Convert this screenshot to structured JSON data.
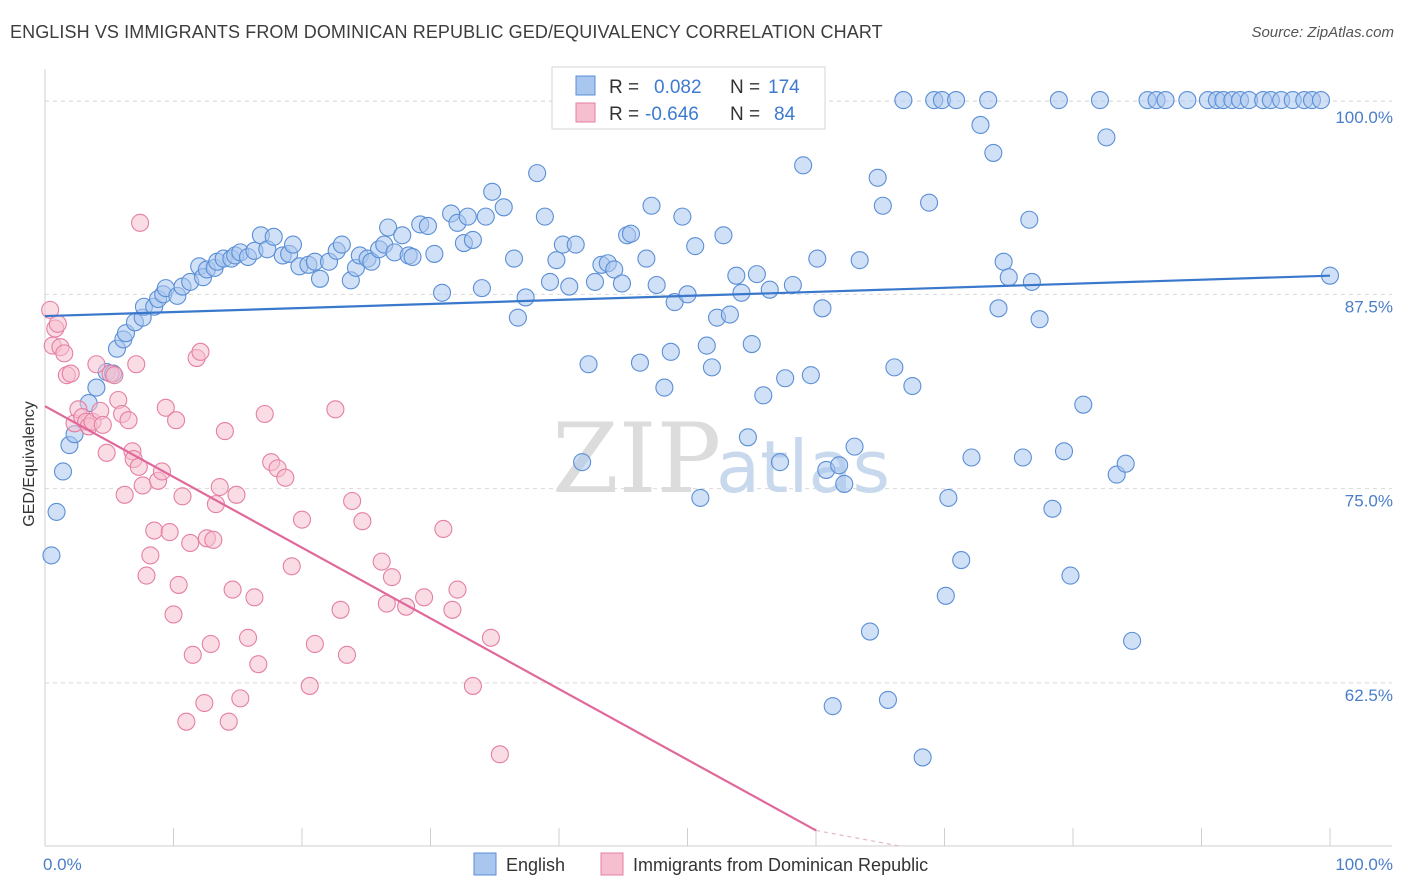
{
  "title": "ENGLISH VS IMMIGRANTS FROM DOMINICAN REPUBLIC GED/EQUIVALENCY CORRELATION CHART",
  "source": "Source: ZipAtlas.com",
  "watermark": {
    "zip": "ZIP",
    "atlas": "atlas"
  },
  "colors": {
    "english_fill": "#a9c6ef",
    "english_stroke": "#5b8fd6",
    "english_line": "#3a78cc",
    "dominican_fill": "#f5bfd0",
    "dominican_stroke": "#e57fa3",
    "dominican_line": "#e0689a",
    "grid": "#d9d9d9",
    "tick_label": "#4a7ec9"
  },
  "legend": {
    "rows": [
      {
        "r_label": "R =",
        "r_value": "0.082",
        "n_label": "N =",
        "n_value": "174"
      },
      {
        "r_label": "R =",
        "r_value": "-0.646",
        "n_label": "N =",
        "n_value": "84"
      }
    ]
  },
  "bottom_legend": [
    "English",
    "Immigrants from Dominican Republic"
  ],
  "chart_data": {
    "type": "scatter",
    "xlabel": "",
    "ylabel": "GED/Equivalency",
    "xlim": [
      0,
      100
    ],
    "ylim": [
      52,
      102
    ],
    "x_tick_labels": [
      "0.0%",
      "100.0%"
    ],
    "y_ticks": [
      62.5,
      75.0,
      87.5,
      100.0
    ],
    "y_tick_labels": [
      "62.5%",
      "75.0%",
      "87.5%",
      "100.0%"
    ],
    "grid": true,
    "legend_position": "top-center",
    "series": [
      {
        "name": "English",
        "trend": {
          "x": [
            0,
            100
          ],
          "y": [
            86.1,
            88.7
          ]
        },
        "points": [
          [
            0.5,
            70.7
          ],
          [
            0.9,
            73.5
          ],
          [
            1.4,
            76.1
          ],
          [
            1.9,
            77.8
          ],
          [
            2.3,
            78.5
          ],
          [
            3.4,
            80.5
          ],
          [
            4.0,
            81.5
          ],
          [
            4.8,
            82.5
          ],
          [
            5.3,
            82.4
          ],
          [
            5.6,
            84.0
          ],
          [
            6.1,
            84.6
          ],
          [
            6.3,
            85.0
          ],
          [
            7.0,
            85.7
          ],
          [
            7.6,
            86.0
          ],
          [
            7.7,
            86.7
          ],
          [
            8.5,
            86.7
          ],
          [
            8.8,
            87.2
          ],
          [
            9.2,
            87.5
          ],
          [
            9.4,
            87.9
          ],
          [
            10.3,
            87.4
          ],
          [
            10.7,
            88.0
          ],
          [
            11.3,
            88.3
          ],
          [
            12.0,
            89.3
          ],
          [
            12.3,
            88.6
          ],
          [
            12.6,
            89.1
          ],
          [
            13.2,
            89.2
          ],
          [
            13.4,
            89.6
          ],
          [
            13.9,
            89.8
          ],
          [
            14.5,
            89.8
          ],
          [
            14.8,
            90.0
          ],
          [
            15.2,
            90.2
          ],
          [
            15.8,
            89.9
          ],
          [
            16.3,
            90.3
          ],
          [
            16.8,
            91.3
          ],
          [
            17.3,
            90.4
          ],
          [
            17.8,
            91.2
          ],
          [
            18.5,
            90.0
          ],
          [
            19.0,
            90.1
          ],
          [
            19.3,
            90.7
          ],
          [
            19.8,
            89.3
          ],
          [
            20.5,
            89.4
          ],
          [
            21.0,
            89.6
          ],
          [
            21.4,
            88.5
          ],
          [
            22.1,
            89.6
          ],
          [
            22.7,
            90.3
          ],
          [
            23.1,
            90.7
          ],
          [
            23.8,
            88.4
          ],
          [
            24.2,
            89.2
          ],
          [
            24.5,
            90.0
          ],
          [
            25.1,
            89.8
          ],
          [
            25.4,
            89.6
          ],
          [
            26.0,
            90.4
          ],
          [
            26.4,
            90.7
          ],
          [
            26.7,
            91.8
          ],
          [
            27.2,
            90.2
          ],
          [
            27.8,
            91.3
          ],
          [
            28.3,
            90.0
          ],
          [
            28.6,
            89.9
          ],
          [
            29.2,
            92.0
          ],
          [
            29.8,
            91.9
          ],
          [
            30.3,
            90.1
          ],
          [
            30.9,
            87.6
          ],
          [
            31.6,
            92.7
          ],
          [
            32.1,
            92.1
          ],
          [
            32.6,
            90.8
          ],
          [
            32.9,
            92.5
          ],
          [
            33.3,
            91.0
          ],
          [
            34.0,
            87.9
          ],
          [
            34.3,
            92.5
          ],
          [
            34.8,
            94.1
          ],
          [
            35.7,
            93.1
          ],
          [
            36.5,
            89.8
          ],
          [
            36.8,
            86.0
          ],
          [
            37.4,
            87.3
          ],
          [
            38.3,
            95.3
          ],
          [
            38.9,
            92.5
          ],
          [
            39.3,
            88.3
          ],
          [
            39.8,
            89.7
          ],
          [
            40.3,
            90.7
          ],
          [
            40.8,
            88.0
          ],
          [
            41.3,
            90.7
          ],
          [
            41.8,
            76.7
          ],
          [
            42.3,
            83.0
          ],
          [
            42.8,
            88.3
          ],
          [
            43.3,
            89.4
          ],
          [
            43.8,
            89.5
          ],
          [
            44.3,
            89.1
          ],
          [
            44.9,
            88.2
          ],
          [
            45.3,
            91.3
          ],
          [
            45.6,
            91.4
          ],
          [
            46.3,
            83.1
          ],
          [
            46.8,
            89.8
          ],
          [
            47.2,
            93.2
          ],
          [
            47.6,
            88.1
          ],
          [
            48.2,
            81.5
          ],
          [
            48.7,
            83.8
          ],
          [
            49.0,
            87.0
          ],
          [
            49.6,
            92.5
          ],
          [
            50.0,
            87.5
          ],
          [
            50.6,
            90.6
          ],
          [
            51.0,
            74.4
          ],
          [
            51.5,
            84.2
          ],
          [
            51.9,
            82.8
          ],
          [
            52.3,
            86.0
          ],
          [
            52.8,
            91.3
          ],
          [
            53.3,
            86.2
          ],
          [
            53.8,
            88.7
          ],
          [
            54.2,
            87.6
          ],
          [
            54.7,
            78.3
          ],
          [
            55.0,
            84.3
          ],
          [
            55.4,
            88.8
          ],
          [
            55.9,
            81.0
          ],
          [
            56.4,
            87.8
          ],
          [
            57.2,
            76.7
          ],
          [
            57.6,
            82.1
          ],
          [
            58.2,
            88.1
          ],
          [
            59.0,
            95.8
          ],
          [
            59.6,
            82.3
          ],
          [
            60.1,
            89.8
          ],
          [
            60.5,
            86.6
          ],
          [
            60.8,
            76.2
          ],
          [
            61.3,
            61.0
          ],
          [
            61.8,
            76.5
          ],
          [
            62.2,
            75.3
          ],
          [
            63.0,
            77.7
          ],
          [
            63.4,
            89.7
          ],
          [
            64.2,
            65.8
          ],
          [
            64.8,
            95.0
          ],
          [
            65.2,
            93.2
          ],
          [
            65.6,
            61.4
          ],
          [
            66.1,
            82.8
          ],
          [
            66.8,
            100.0
          ],
          [
            67.5,
            81.6
          ],
          [
            68.3,
            57.7
          ],
          [
            68.8,
            93.4
          ],
          [
            69.2,
            100.0
          ],
          [
            69.8,
            100.0
          ],
          [
            70.1,
            68.1
          ],
          [
            70.3,
            74.4
          ],
          [
            70.9,
            100.0
          ],
          [
            71.3,
            70.4
          ],
          [
            72.1,
            77.0
          ],
          [
            72.8,
            98.4
          ],
          [
            73.4,
            100.0
          ],
          [
            73.8,
            96.6
          ],
          [
            74.2,
            86.6
          ],
          [
            74.6,
            89.6
          ],
          [
            75.0,
            88.6
          ],
          [
            76.1,
            77.0
          ],
          [
            76.6,
            92.3
          ],
          [
            76.8,
            88.3
          ],
          [
            77.4,
            85.9
          ],
          [
            78.4,
            73.7
          ],
          [
            78.9,
            100.0
          ],
          [
            79.3,
            77.4
          ],
          [
            79.8,
            69.4
          ],
          [
            80.8,
            80.4
          ],
          [
            82.1,
            100.0
          ],
          [
            82.6,
            97.6
          ],
          [
            83.4,
            75.9
          ],
          [
            84.1,
            76.6
          ],
          [
            84.6,
            65.2
          ],
          [
            85.8,
            100.0
          ],
          [
            86.5,
            100.0
          ],
          [
            87.2,
            100.0
          ],
          [
            88.9,
            100.0
          ],
          [
            90.5,
            100.0
          ],
          [
            91.2,
            100.0
          ],
          [
            91.7,
            100.0
          ],
          [
            92.4,
            100.0
          ],
          [
            93.0,
            100.0
          ],
          [
            93.7,
            100.0
          ],
          [
            94.8,
            100.0
          ],
          [
            95.4,
            100.0
          ],
          [
            96.2,
            100.0
          ],
          [
            97.1,
            100.0
          ],
          [
            98.0,
            100.0
          ],
          [
            98.6,
            100.0
          ],
          [
            99.3,
            100.0
          ],
          [
            100.0,
            88.7
          ]
        ]
      },
      {
        "name": "Immigrants from Dominican Republic",
        "trend": {
          "x": [
            0,
            60
          ],
          "y": [
            80.3,
            53.0
          ]
        },
        "trend_dashed": {
          "x": [
            60,
            66.5
          ],
          "y": [
            53.0,
            50.0
          ]
        },
        "points": [
          [
            0.4,
            86.5
          ],
          [
            0.6,
            84.2
          ],
          [
            0.8,
            85.3
          ],
          [
            1.0,
            85.6
          ],
          [
            1.2,
            84.1
          ],
          [
            1.5,
            83.7
          ],
          [
            1.7,
            82.3
          ],
          [
            2.0,
            82.4
          ],
          [
            2.3,
            79.2
          ],
          [
            2.6,
            80.1
          ],
          [
            2.9,
            79.6
          ],
          [
            3.2,
            79.3
          ],
          [
            3.4,
            79.0
          ],
          [
            3.7,
            79.3
          ],
          [
            4.0,
            83.0
          ],
          [
            4.3,
            80.0
          ],
          [
            4.5,
            79.1
          ],
          [
            4.8,
            77.3
          ],
          [
            5.1,
            82.4
          ],
          [
            5.4,
            82.3
          ],
          [
            5.7,
            80.7
          ],
          [
            6.0,
            79.8
          ],
          [
            6.2,
            74.6
          ],
          [
            6.5,
            79.4
          ],
          [
            6.8,
            77.4
          ],
          [
            6.9,
            76.9
          ],
          [
            7.1,
            83.0
          ],
          [
            7.3,
            76.4
          ],
          [
            7.4,
            92.1
          ],
          [
            7.6,
            75.2
          ],
          [
            7.9,
            69.4
          ],
          [
            8.2,
            70.7
          ],
          [
            8.5,
            72.3
          ],
          [
            8.8,
            75.5
          ],
          [
            9.1,
            76.1
          ],
          [
            9.4,
            80.2
          ],
          [
            9.7,
            72.2
          ],
          [
            10.0,
            66.9
          ],
          [
            10.2,
            79.4
          ],
          [
            10.4,
            68.8
          ],
          [
            10.7,
            74.5
          ],
          [
            11.0,
            60.0
          ],
          [
            11.3,
            71.5
          ],
          [
            11.5,
            64.3
          ],
          [
            11.8,
            83.4
          ],
          [
            12.1,
            83.8
          ],
          [
            12.4,
            61.2
          ],
          [
            12.6,
            71.8
          ],
          [
            12.9,
            65.0
          ],
          [
            13.1,
            71.7
          ],
          [
            13.3,
            74.0
          ],
          [
            13.6,
            75.1
          ],
          [
            14.0,
            78.7
          ],
          [
            14.3,
            60.0
          ],
          [
            14.6,
            68.5
          ],
          [
            14.9,
            74.6
          ],
          [
            15.2,
            61.5
          ],
          [
            15.8,
            65.4
          ],
          [
            16.3,
            68.0
          ],
          [
            16.6,
            63.7
          ],
          [
            17.1,
            79.8
          ],
          [
            17.6,
            76.7
          ],
          [
            18.1,
            76.3
          ],
          [
            18.7,
            75.7
          ],
          [
            19.2,
            70.0
          ],
          [
            20.0,
            73.0
          ],
          [
            20.6,
            62.3
          ],
          [
            21.0,
            65.0
          ],
          [
            22.6,
            80.1
          ],
          [
            23.0,
            67.2
          ],
          [
            23.5,
            64.3
          ],
          [
            23.9,
            74.2
          ],
          [
            24.7,
            72.9
          ],
          [
            26.2,
            70.3
          ],
          [
            26.6,
            67.6
          ],
          [
            27.0,
            69.3
          ],
          [
            28.1,
            67.4
          ],
          [
            29.5,
            68.0
          ],
          [
            31.0,
            72.4
          ],
          [
            31.7,
            67.2
          ],
          [
            32.1,
            68.5
          ],
          [
            33.3,
            62.3
          ],
          [
            34.7,
            65.4
          ],
          [
            35.4,
            57.9
          ]
        ]
      }
    ]
  }
}
